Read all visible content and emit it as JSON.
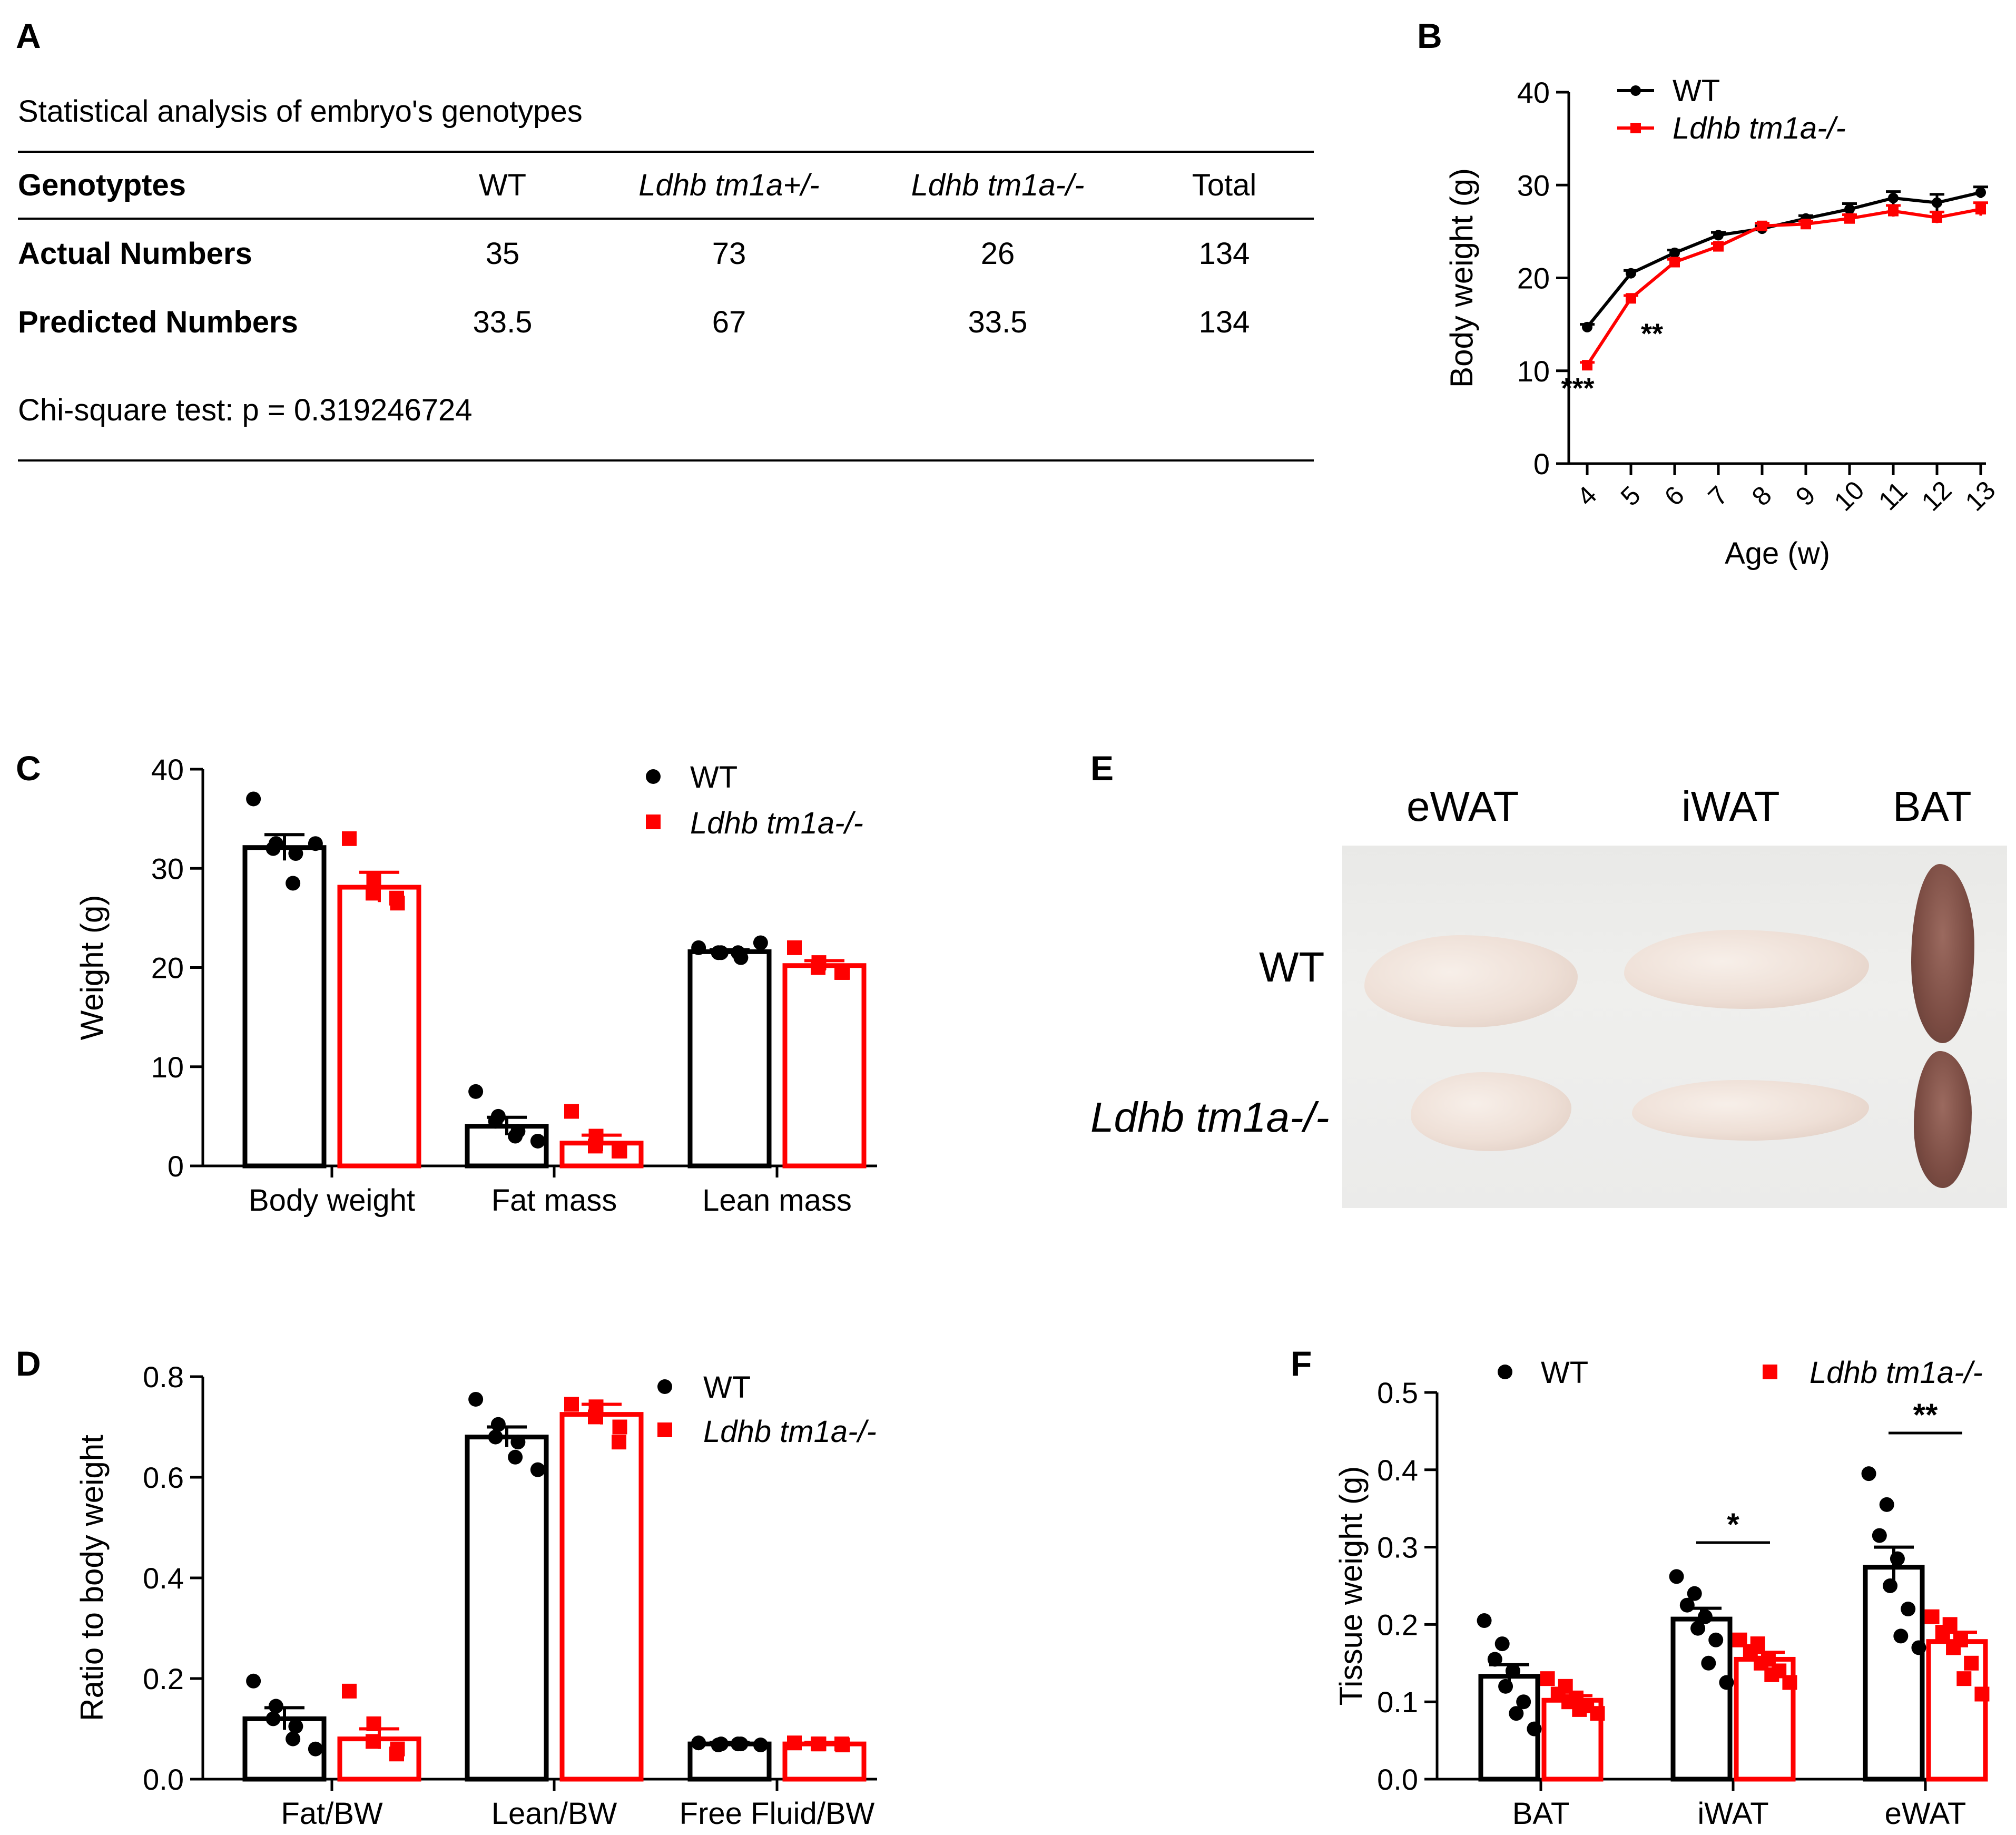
{
  "panels": {
    "a": "A",
    "b": "B",
    "c": "C",
    "d": "D",
    "e": "E",
    "f": "F"
  },
  "colors": {
    "wt": "#000000",
    "ko": "#ff0000"
  },
  "table": {
    "title": "Statistical analysis of embryo's genotypes",
    "headers": [
      "Genotyptes",
      "WT",
      "Ldhb tm1a+/-",
      "Ldhb tm1a-/-",
      "Total"
    ],
    "rows": [
      {
        "label": "Actual Numbers",
        "values": [
          "35",
          "73",
          "26",
          "134"
        ]
      },
      {
        "label": "Predicted Numbers",
        "values": [
          "33.5",
          "67",
          "33.5",
          "134"
        ]
      }
    ],
    "footer": "Chi-square test: p = 0.319246724"
  },
  "photo": {
    "columns": [
      "eWAT",
      "iWAT",
      "BAT"
    ],
    "rows": [
      "WT",
      "Ldhb tm1a-/-"
    ]
  },
  "chart_data": [
    {
      "id": "B",
      "type": "line",
      "xlabel": "Age (w)",
      "ylabel": "Body weight (g)",
      "ylim": [
        0,
        40
      ],
      "yticks": [
        0,
        10,
        20,
        30,
        40
      ],
      "x": [
        4,
        5,
        6,
        7,
        8,
        9,
        10,
        11,
        12,
        13
      ],
      "series": [
        {
          "name": "WT",
          "values": [
            14.7,
            20.5,
            22.7,
            24.6,
            25.3,
            26.4,
            27.4,
            28.6,
            28.1,
            29.2
          ],
          "err": [
            0.3,
            0.3,
            0.3,
            0.3,
            0.3,
            0.3,
            0.6,
            0.7,
            0.9,
            0.6
          ]
        },
        {
          "name": "Ldhb tm1a-/-",
          "values": [
            10.6,
            17.8,
            21.7,
            23.4,
            25.6,
            25.8,
            26.4,
            27.2,
            26.5,
            27.4
          ],
          "err": [
            0.3,
            0.3,
            0.3,
            0.3,
            0.3,
            0.3,
            0.4,
            0.6,
            0.6,
            0.7
          ]
        }
      ],
      "annotations": [
        {
          "x": 4,
          "text": "***"
        },
        {
          "x": 5,
          "text": "**"
        }
      ]
    },
    {
      "id": "C",
      "type": "bar",
      "ylabel": "Weight (g)",
      "ylim": [
        0,
        40
      ],
      "yticks": [
        0,
        10,
        20,
        30,
        40
      ],
      "categories": [
        "Body weight",
        "Fat mass",
        "Lean mass"
      ],
      "series": [
        {
          "name": "WT",
          "values": [
            32.1,
            4.0,
            21.6
          ],
          "err": [
            1.3,
            0.9,
            0.2
          ],
          "points": [
            [
              37.0,
              32.5,
              32.0,
              31.5,
              28.5,
              32.5
            ],
            [
              7.5,
              5.0,
              4.5,
              3.5,
              3.0,
              2.5
            ],
            [
              22.0,
              21.5,
              21.5,
              21.0,
              21.5,
              22.5
            ]
          ]
        },
        {
          "name": "Ldhb tm1a-/-",
          "values": [
            28.1,
            2.3,
            20.2
          ],
          "err": [
            1.5,
            0.8,
            0.5
          ],
          "points": [
            [
              33.0,
              29.0,
              27.5,
              26.5,
              27.0
            ],
            [
              5.5,
              3.0,
              2.0,
              1.5,
              1.5
            ],
            [
              22.0,
              20.5,
              20.0,
              19.5,
              19.5
            ]
          ]
        }
      ]
    },
    {
      "id": "D",
      "type": "bar",
      "ylabel": "Ratio to body weight",
      "ylim": [
        0,
        0.8
      ],
      "yticks": [
        0.0,
        0.2,
        0.4,
        0.6,
        0.8
      ],
      "categories": [
        "Fat/BW",
        "Lean/BW",
        "Free Fluid/BW"
      ],
      "series": [
        {
          "name": "WT",
          "values": [
            0.12,
            0.68,
            0.07
          ],
          "err": [
            0.022,
            0.02,
            0.003
          ],
          "points": [
            [
              0.195,
              0.145,
              0.12,
              0.105,
              0.08,
              0.06
            ],
            [
              0.755,
              0.705,
              0.68,
              0.67,
              0.64,
              0.615
            ],
            [
              0.072,
              0.07,
              0.068,
              0.07,
              0.07,
              0.068
            ]
          ]
        },
        {
          "name": "Ldhb tm1a-/-",
          "values": [
            0.08,
            0.725,
            0.07
          ],
          "err": [
            0.02,
            0.02,
            0.003
          ],
          "points": [
            [
              0.175,
              0.11,
              0.075,
              0.06,
              0.05
            ],
            [
              0.745,
              0.74,
              0.72,
              0.7,
              0.67
            ],
            [
              0.072,
              0.07,
              0.07,
              0.068,
              0.07
            ]
          ]
        }
      ]
    },
    {
      "id": "F",
      "type": "bar",
      "ylabel": "Tissue weight (g)",
      "ylim": [
        0,
        0.5
      ],
      "yticks": [
        0.0,
        0.1,
        0.2,
        0.3,
        0.4,
        0.5
      ],
      "categories": [
        "BAT",
        "iWAT",
        "eWAT"
      ],
      "series": [
        {
          "name": "WT",
          "values": [
            0.133,
            0.207,
            0.274
          ],
          "err": [
            0.015,
            0.014,
            0.026
          ],
          "points": [
            [
              0.205,
              0.175,
              0.155,
              0.14,
              0.12,
              0.1,
              0.085,
              0.065
            ],
            [
              0.262,
              0.24,
              0.225,
              0.21,
              0.195,
              0.18,
              0.15,
              0.125
            ],
            [
              0.395,
              0.355,
              0.315,
              0.285,
              0.25,
              0.22,
              0.185,
              0.17
            ]
          ]
        },
        {
          "name": "Ldhb tm1a-/-",
          "values": [
            0.102,
            0.155,
            0.178
          ],
          "err": [
            0.006,
            0.009,
            0.012
          ],
          "points": [
            [
              0.13,
              0.12,
              0.11,
              0.105,
              0.1,
              0.095,
              0.09,
              0.085
            ],
            [
              0.18,
              0.175,
              0.165,
              0.155,
              0.15,
              0.14,
              0.135,
              0.125
            ],
            [
              0.21,
              0.2,
              0.19,
              0.18,
              0.17,
              0.15,
              0.13,
              0.11
            ]
          ]
        }
      ],
      "annotations": [
        {
          "category": "iWAT",
          "text": "*"
        },
        {
          "category": "eWAT",
          "text": "**"
        }
      ]
    }
  ]
}
